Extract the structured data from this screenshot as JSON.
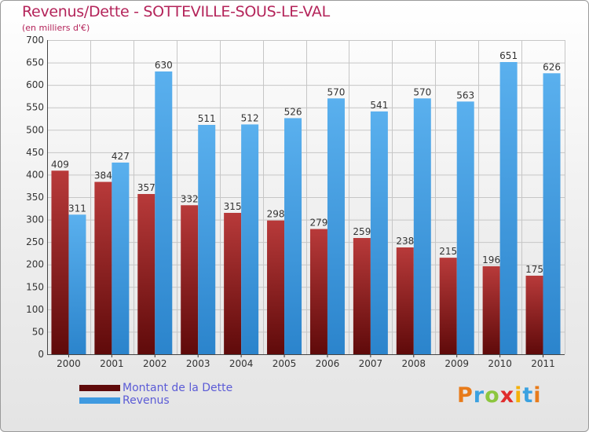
{
  "header": {
    "title": "Revenus/Dette - SOTTEVILLE-SOUS-LE-VAL",
    "subtitle": "(en milliers d'€)"
  },
  "colors": {
    "debt_dark": "#5f0a0a",
    "debt_light": "#b83a3a",
    "revenue_dark": "#2b84cc",
    "revenue_light": "#5ab0ee",
    "title": "#b4245a",
    "legend_text": "#5b5bd6"
  },
  "legend": {
    "debt_label": "Montant de la Dette",
    "revenue_label": "Revenus",
    "placement": "bottom-left"
  },
  "brand": {
    "letters": [
      "P",
      "r",
      "o",
      "x",
      "i",
      "t",
      "i"
    ]
  },
  "chart_data": {
    "type": "bar",
    "title": "Revenus/Dette - SOTTEVILLE-SOUS-LE-VAL",
    "subtitle": "(en milliers d'€)",
    "xlabel": "",
    "ylabel": "",
    "ylim": [
      0,
      700
    ],
    "yticks": [
      0,
      50,
      100,
      150,
      200,
      250,
      300,
      350,
      400,
      450,
      500,
      550,
      600,
      650,
      700
    ],
    "grid": true,
    "categories": [
      "2000",
      "2001",
      "2002",
      "2003",
      "2004",
      "2005",
      "2006",
      "2007",
      "2008",
      "2009",
      "2010",
      "2011"
    ],
    "series": [
      {
        "name": "Montant de la Dette",
        "values": [
          409,
          384,
          357,
          332,
          315,
          298,
          279,
          259,
          238,
          215,
          196,
          175
        ]
      },
      {
        "name": "Revenus",
        "values": [
          311,
          427,
          630,
          511,
          512,
          526,
          570,
          541,
          570,
          563,
          651,
          626
        ]
      }
    ]
  }
}
